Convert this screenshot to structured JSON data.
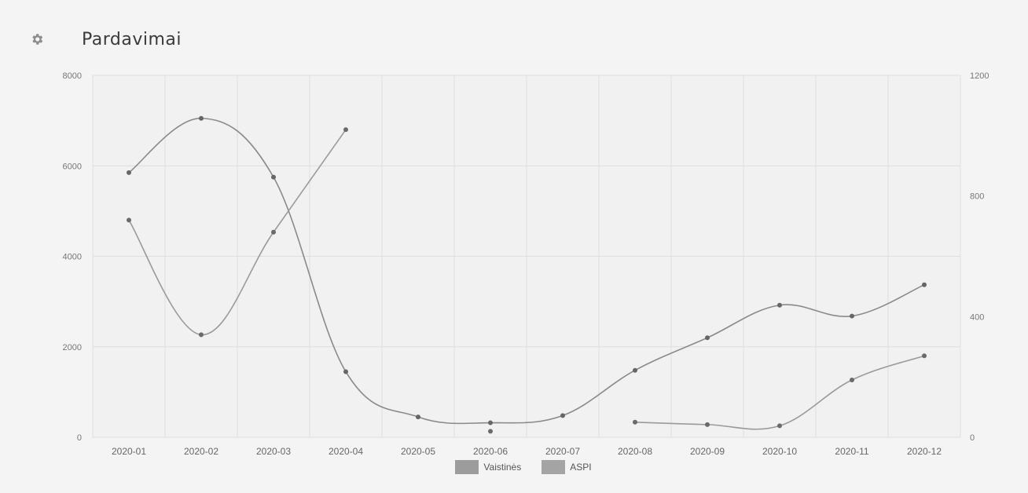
{
  "header": {
    "title": "Pardavimai",
    "icon": "gear-icon"
  },
  "chart_data": {
    "type": "line",
    "title": "Pardavimai",
    "categories": [
      "2020-01",
      "2020-02",
      "2020-03",
      "2020-04",
      "2020-05",
      "2020-06",
      "2020-07",
      "2020-08",
      "2020-09",
      "2020-10",
      "2020-11",
      "2020-12"
    ],
    "y_left": {
      "ticks": [
        "0",
        "2000",
        "4000",
        "6000",
        "8000"
      ],
      "ylim": [
        0,
        8000
      ]
    },
    "y_right": {
      "ticks": [
        "0",
        "400",
        "800",
        "1200"
      ],
      "ylim": [
        0,
        1200
      ]
    },
    "series": [
      {
        "name": "Vaistinės",
        "axis": "left",
        "color": "#8a8a8a",
        "values": [
          5850,
          7050,
          5750,
          1450,
          450,
          320,
          480,
          1480,
          2200,
          2920,
          2680,
          3370
        ]
      },
      {
        "name": "ASPI",
        "axis": "right",
        "color": "#9a9a9a",
        "segments": [
          {
            "x_index": [
              0,
              1,
              2,
              3
            ],
            "values": [
              720,
              340,
              680,
              1020
            ]
          },
          {
            "x_index": [
              5
            ],
            "values": [
              20
            ]
          },
          {
            "x_index": [
              7,
              8,
              9,
              10,
              11
            ],
            "values": [
              50,
              42,
              38,
              190,
              270
            ]
          }
        ]
      }
    ],
    "grid": true,
    "legend_position": "bottom-center"
  },
  "legend": {
    "items": [
      {
        "label": "Vaistinės",
        "color": "#9c9c9c"
      },
      {
        "label": "ASPI",
        "color": "#a4a4a4"
      }
    ]
  }
}
